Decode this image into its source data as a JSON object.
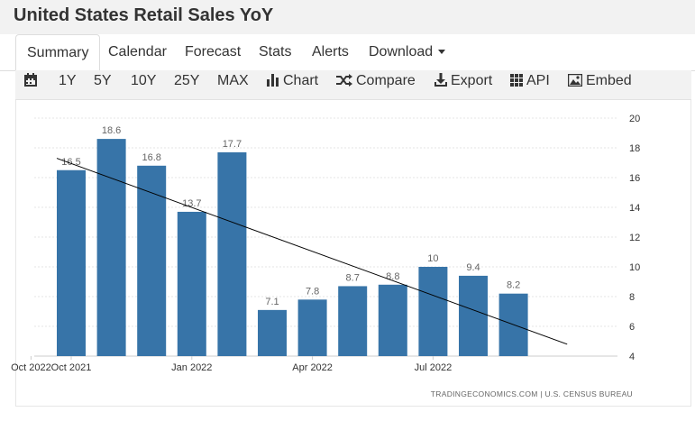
{
  "page": {
    "title": "United States Retail Sales YoY"
  },
  "tabs": [
    {
      "label": "Summary",
      "active": true
    },
    {
      "label": "Calendar"
    },
    {
      "label": "Forecast"
    },
    {
      "label": "Stats"
    },
    {
      "label": "Alerts"
    },
    {
      "label": "Download"
    }
  ],
  "toolbar": {
    "calendar_icon": "calendar-icon",
    "ranges": [
      "1Y",
      "5Y",
      "10Y",
      "25Y",
      "MAX"
    ],
    "chart_label": "Chart",
    "compare_label": "Compare",
    "export_label": "Export",
    "api_label": "API",
    "embed_label": "Embed"
  },
  "chart_data": {
    "type": "bar",
    "categories": [
      "Oct 2021",
      "Nov 2021",
      "Dec 2021",
      "Jan 2022",
      "Feb 2022",
      "Mar 2022",
      "Apr 2022",
      "May 2022",
      "Jun 2022",
      "Jul 2022",
      "Aug 2022",
      "Sep 2022"
    ],
    "values": [
      16.5,
      18.6,
      16.8,
      13.7,
      17.7,
      7.1,
      7.8,
      8.7,
      8.8,
      10,
      9.4,
      8.2
    ],
    "x_tick_labels": [
      "Oct 2021",
      "Jan 2022",
      "Apr 2022",
      "Jul 2022",
      "Oct 2022"
    ],
    "x_axis_end": "Nov 2022",
    "y_ticks": [
      4,
      6,
      8,
      10,
      12,
      14,
      16,
      18,
      20
    ],
    "ylim": [
      4,
      20
    ],
    "y_axis_side": "right",
    "grid": true,
    "bar_color": "#3774a8",
    "trendline": {
      "color": "#000000",
      "start": {
        "x": "Oct 2021",
        "y": 17.3
      },
      "end": {
        "x": "Nov 2022",
        "y": 4.8
      }
    },
    "source": "TRADINGECONOMICS.COM | U.S. CENSUS BUREAU"
  }
}
